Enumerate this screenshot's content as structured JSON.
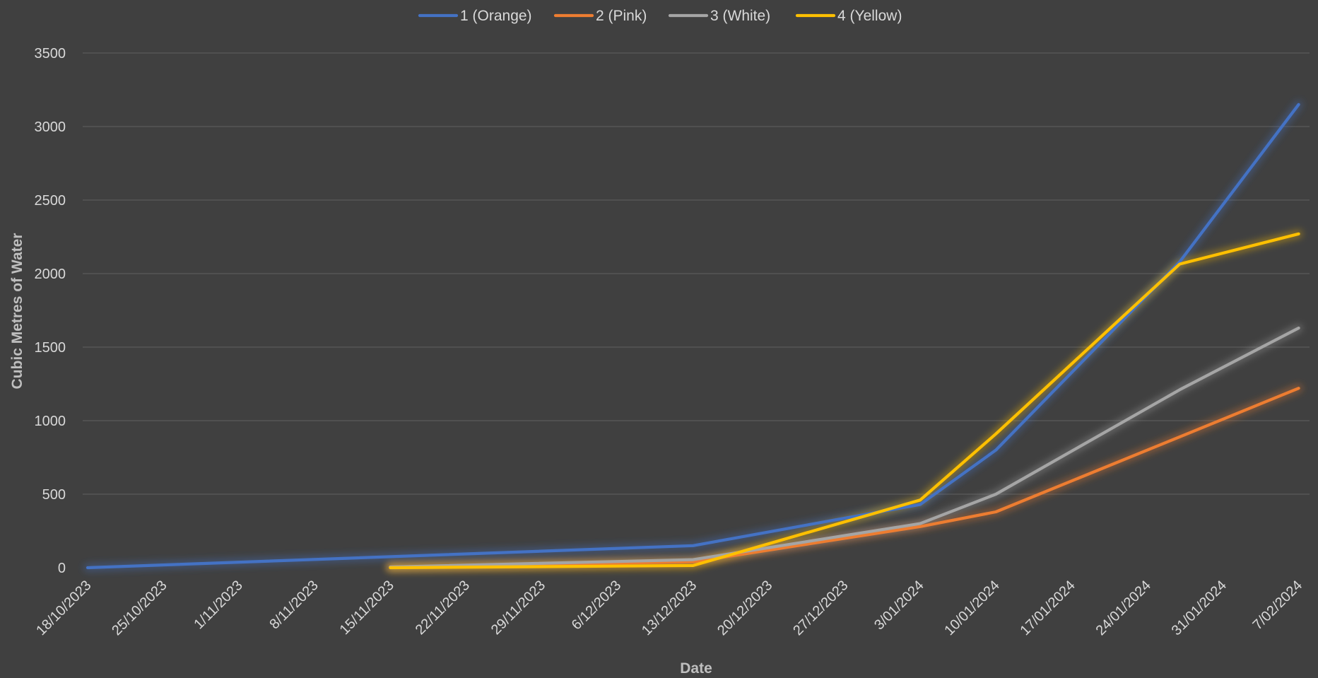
{
  "chart_data": {
    "type": "line",
    "title": "",
    "xlabel": "Date",
    "ylabel": "Cubic Metres of Water",
    "ylim": [
      0,
      3500
    ],
    "yticks": [
      0,
      500,
      1000,
      1500,
      2000,
      2500,
      3000,
      3500
    ],
    "x_tick_labels": [
      "18/10/2023",
      "25/10/2023",
      "1/11/2023",
      "8/11/2023",
      "15/11/2023",
      "22/11/2023",
      "29/11/2023",
      "6/12/2023",
      "13/12/2023",
      "20/12/2023",
      "27/12/2023",
      "3/01/2024",
      "10/01/2024",
      "17/01/2024",
      "24/01/2024",
      "31/01/2024",
      "7/02/2024"
    ],
    "grid": true,
    "legend_position": "top",
    "series": [
      {
        "name": "1 (Orange)",
        "color": "#4472c4",
        "points": [
          {
            "x": "18/10/2023",
            "y": 0
          },
          {
            "x": "13/12/2023",
            "y": 150
          },
          {
            "x": "3/01/2024",
            "y": 430
          },
          {
            "x": "10/01/2024",
            "y": 800
          },
          {
            "x": "27/01/2024",
            "y": 2080
          },
          {
            "x": "7/02/2024",
            "y": 3150
          }
        ]
      },
      {
        "name": "2 (Pink)",
        "color": "#ed7d31",
        "points": [
          {
            "x": "15/11/2023",
            "y": 5
          },
          {
            "x": "13/12/2023",
            "y": 40
          },
          {
            "x": "3/01/2024",
            "y": 280
          },
          {
            "x": "10/01/2024",
            "y": 380
          },
          {
            "x": "27/01/2024",
            "y": 890
          },
          {
            "x": "7/02/2024",
            "y": 1220
          }
        ]
      },
      {
        "name": "3 (White)",
        "color": "#a5a5a5",
        "points": [
          {
            "x": "15/11/2023",
            "y": 5
          },
          {
            "x": "13/12/2023",
            "y": 55
          },
          {
            "x": "3/01/2024",
            "y": 300
          },
          {
            "x": "10/01/2024",
            "y": 500
          },
          {
            "x": "27/01/2024",
            "y": 1210
          },
          {
            "x": "7/02/2024",
            "y": 1630
          }
        ]
      },
      {
        "name": "4 (Yellow)",
        "color": "#ffc000",
        "points": [
          {
            "x": "15/11/2023",
            "y": 0
          },
          {
            "x": "13/12/2023",
            "y": 15
          },
          {
            "x": "3/01/2024",
            "y": 460
          },
          {
            "x": "10/01/2024",
            "y": 910
          },
          {
            "x": "27/01/2024",
            "y": 2065
          },
          {
            "x": "7/02/2024",
            "y": 2270
          }
        ]
      }
    ]
  }
}
